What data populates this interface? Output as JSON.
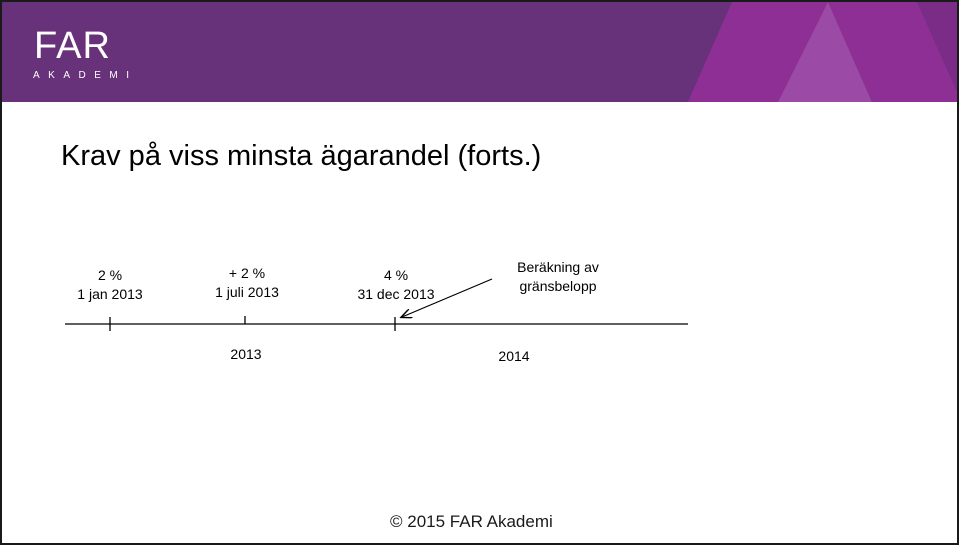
{
  "brand": {
    "logo_text": "FAR",
    "logo_subtext": "AKADEMI",
    "colors": {
      "header": "#68327a",
      "accent": "#8e2f96",
      "accent_light": "#9d3aa3"
    }
  },
  "slide": {
    "title": "Krav på viss minsta ägarandel (forts.)"
  },
  "timeline": {
    "markers": [
      {
        "percent": "2 %",
        "date": "1 jan 2013"
      },
      {
        "percent": "+ 2 %",
        "date": "1 juli 2013"
      },
      {
        "percent": "4 %",
        "date": "31 dec 2013"
      }
    ],
    "callout": {
      "line1": "Beräkning av",
      "line2": "gränsbelopp"
    },
    "years": [
      "2013",
      "2014"
    ]
  },
  "footer": {
    "copyright": "© 2015 FAR Akademi"
  }
}
